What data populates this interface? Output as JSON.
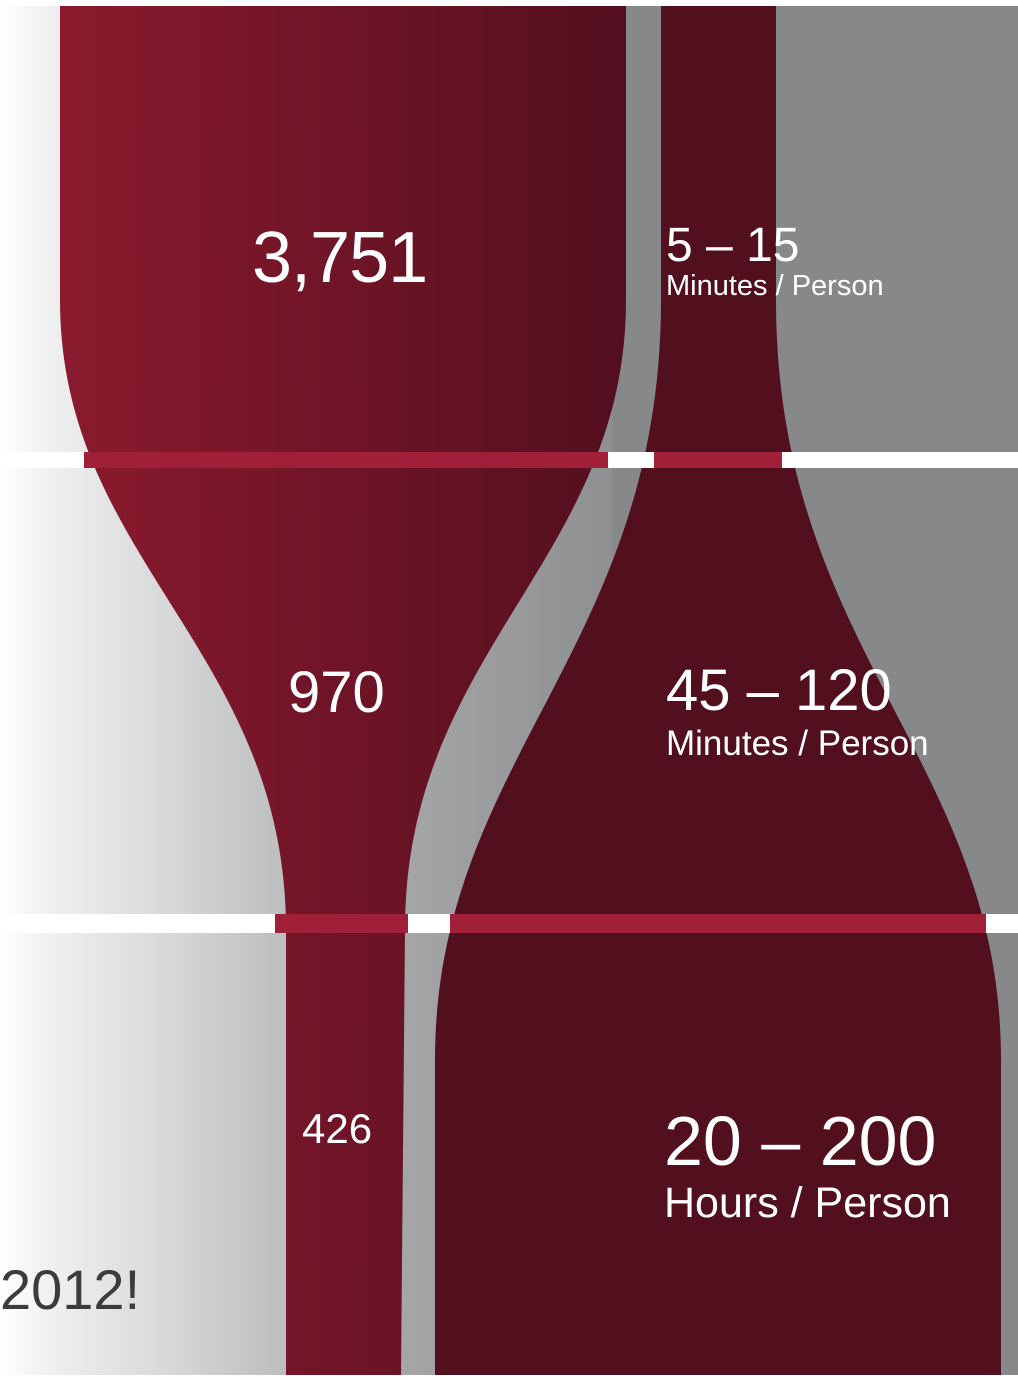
{
  "diagram": {
    "tiers": [
      {
        "count": "3,751",
        "time_value": "5 – 15",
        "time_unit": "Minutes / Person"
      },
      {
        "count": "970",
        "time_value": "45 – 120",
        "time_unit": "Minutes / Person"
      },
      {
        "count": "426",
        "time_value": "20 – 200",
        "time_unit": "Hours / Person"
      }
    ],
    "footer_year": "2012!"
  },
  "colors": {
    "crimson_light": "#8b1a2e",
    "crimson_dark": "#4e0f1f",
    "grey": "#87888a",
    "separator_band": "#a0203a"
  }
}
